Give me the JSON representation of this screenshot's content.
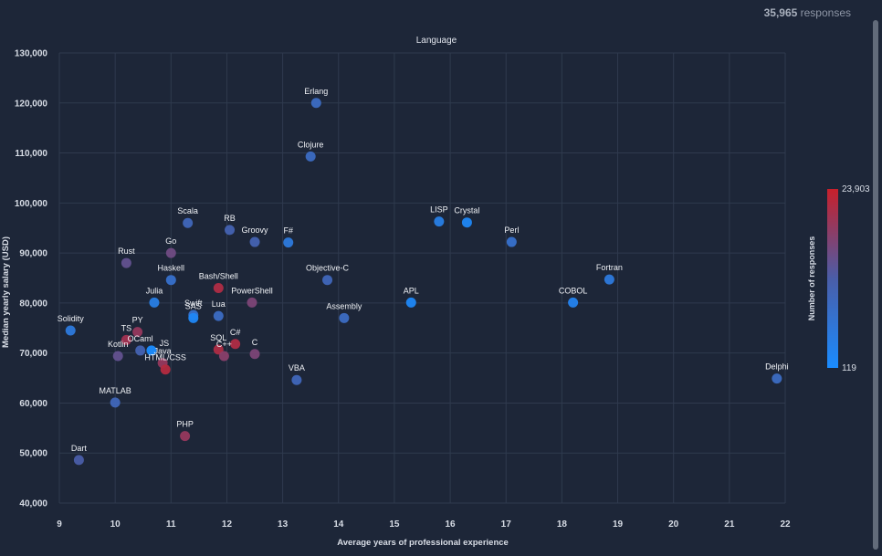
{
  "header": {
    "responses_count": "35,965",
    "responses_label": " responses"
  },
  "chart_data": {
    "type": "scatter",
    "title": "Language",
    "xlabel": "Average years of professional experience",
    "ylabel": "Median yearly salary (USD)",
    "xlim": [
      9,
      22
    ],
    "ylim": [
      40000,
      130000
    ],
    "xticks": [
      9,
      10,
      11,
      12,
      13,
      14,
      15,
      16,
      17,
      18,
      19,
      20,
      21,
      22
    ],
    "yticks": [
      40000,
      50000,
      60000,
      70000,
      80000,
      90000,
      100000,
      110000,
      120000,
      130000
    ],
    "ytick_labels": [
      "40,000",
      "50,000",
      "60,000",
      "70,000",
      "80,000",
      "90,000",
      "100,000",
      "110,000",
      "120,000",
      "130,000"
    ],
    "grid": true,
    "colorbar": {
      "label": "Number of responses",
      "min": 119,
      "max": 23903,
      "min_label": "119",
      "max_label": "23,903",
      "low_color": "#1a8cff",
      "mid_color": "#4a5da8",
      "high_color": "#c8202b"
    },
    "points": [
      {
        "label": "Erlang",
        "x": 13.6,
        "y": 120000,
        "c": 0.35,
        "lpos": "above"
      },
      {
        "label": "Clojure",
        "x": 13.5,
        "y": 109300,
        "c": 0.35,
        "lpos": "above"
      },
      {
        "label": "LISP",
        "x": 15.8,
        "y": 96300,
        "c": 0.15,
        "lpos": "above"
      },
      {
        "label": "Crystal",
        "x": 16.3,
        "y": 96100,
        "c": 0.05,
        "lpos": "above"
      },
      {
        "label": "Perl",
        "x": 17.1,
        "y": 92200,
        "c": 0.3,
        "lpos": "above"
      },
      {
        "label": "Scala",
        "x": 11.3,
        "y": 96000,
        "c": 0.4,
        "lpos": "above"
      },
      {
        "label": "RB",
        "x": 12.05,
        "y": 94600,
        "c": 0.45,
        "lpos": "above"
      },
      {
        "label": "Groovy",
        "x": 12.5,
        "y": 92200,
        "c": 0.45,
        "lpos": "above"
      },
      {
        "label": "F#",
        "x": 13.1,
        "y": 92100,
        "c": 0.2,
        "lpos": "above"
      },
      {
        "label": "Go",
        "x": 11.0,
        "y": 90000,
        "c": 0.65,
        "lpos": "above"
      },
      {
        "label": "Rust",
        "x": 10.2,
        "y": 88000,
        "c": 0.6,
        "lpos": "above"
      },
      {
        "label": "Haskell",
        "x": 11.0,
        "y": 84600,
        "c": 0.3,
        "lpos": "above"
      },
      {
        "label": "Objective-C",
        "x": 13.8,
        "y": 84600,
        "c": 0.4,
        "lpos": "above"
      },
      {
        "label": "Fortran",
        "x": 18.85,
        "y": 84700,
        "c": 0.2,
        "lpos": "above"
      },
      {
        "label": "Bash/Shell",
        "x": 11.85,
        "y": 83000,
        "c": 0.9,
        "lpos": "above"
      },
      {
        "label": "Julia",
        "x": 10.7,
        "y": 80100,
        "c": 0.15,
        "lpos": "above"
      },
      {
        "label": "PowerShell",
        "x": 12.45,
        "y": 80100,
        "c": 0.7,
        "lpos": "above"
      },
      {
        "label": "APL",
        "x": 15.3,
        "y": 80100,
        "c": 0.05,
        "lpos": "above"
      },
      {
        "label": "COBOL",
        "x": 18.2,
        "y": 80100,
        "c": 0.1,
        "lpos": "above"
      },
      {
        "label": "Swift",
        "x": 11.4,
        "y": 77600,
        "c": 0.3,
        "lpos": "above"
      },
      {
        "label": "SAS",
        "x": 11.4,
        "y": 77000,
        "c": 0.05,
        "lpos": "above"
      },
      {
        "label": "Lua",
        "x": 11.85,
        "y": 77400,
        "c": 0.35,
        "lpos": "above"
      },
      {
        "label": "Assembly",
        "x": 14.1,
        "y": 77000,
        "c": 0.35,
        "lpos": "above"
      },
      {
        "label": "Solidity",
        "x": 9.2,
        "y": 74500,
        "c": 0.2,
        "lpos": "above"
      },
      {
        "label": "PY",
        "x": 10.4,
        "y": 74200,
        "c": 0.8,
        "lpos": "above"
      },
      {
        "label": "TS",
        "x": 10.2,
        "y": 72600,
        "c": 0.85,
        "lpos": "above"
      },
      {
        "label": "C#",
        "x": 12.15,
        "y": 71800,
        "c": 0.9,
        "lpos": "above"
      },
      {
        "label": "C",
        "x": 12.5,
        "y": 69800,
        "c": 0.7,
        "lpos": "above"
      },
      {
        "label": "SQL",
        "x": 11.85,
        "y": 70700,
        "c": 0.9,
        "lpos": "above"
      },
      {
        "label": "C++",
        "x": 11.95,
        "y": 69400,
        "c": 0.75,
        "lpos": "above"
      },
      {
        "label": "OCaml",
        "x": 10.45,
        "y": 70500,
        "c": 0.45,
        "lpos": "above"
      },
      {
        "label": "JS",
        "x": 10.65,
        "y": 70500,
        "c": 0.0,
        "lpos": "aboveright"
      },
      {
        "label": "Kotlin",
        "x": 10.05,
        "y": 69400,
        "c": 0.6,
        "lpos": "above"
      },
      {
        "label": "Java",
        "x": 10.85,
        "y": 68000,
        "c": 0.8,
        "lpos": "above"
      },
      {
        "label": "HTML/CSS",
        "x": 10.9,
        "y": 66700,
        "c": 0.92,
        "lpos": "above"
      },
      {
        "label": "VBA",
        "x": 13.25,
        "y": 64600,
        "c": 0.4,
        "lpos": "above"
      },
      {
        "label": "Delphi",
        "x": 21.85,
        "y": 64900,
        "c": 0.35,
        "lpos": "above"
      },
      {
        "label": "MATLAB",
        "x": 10.0,
        "y": 60100,
        "c": 0.4,
        "lpos": "above"
      },
      {
        "label": "PHP",
        "x": 11.25,
        "y": 53400,
        "c": 0.8,
        "lpos": "above"
      },
      {
        "label": "Dart",
        "x": 9.35,
        "y": 48600,
        "c": 0.5,
        "lpos": "above"
      }
    ]
  }
}
